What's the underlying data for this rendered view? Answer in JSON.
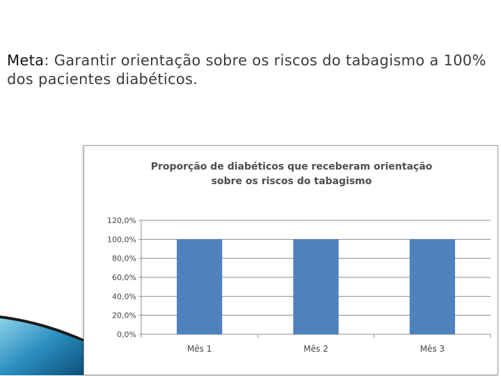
{
  "meta": {
    "label": "Meta",
    "text": ": Garantir orientação sobre os riscos do tabagismo a 100% dos pacientes diabéticos."
  },
  "colors": {
    "bar": "#4f81bd",
    "grid": "#8c8c8c",
    "text": "#444444"
  },
  "chart_data": {
    "type": "bar",
    "title_lines": [
      "Proporção de diabéticos que receberam orientação",
      "sobre os riscos do tabagismo"
    ],
    "categories": [
      "Mês 1",
      "Mês 2",
      "Mês 3"
    ],
    "values": [
      100.0,
      100.0,
      100.0
    ],
    "ylim": [
      0,
      120
    ],
    "yticks": [
      0,
      20,
      40,
      60,
      80,
      100,
      120
    ],
    "ytick_labels": [
      "0,0%",
      "20,0%",
      "40,0%",
      "60,0%",
      "80,0%",
      "100,0%",
      "120,0%"
    ],
    "grid": true,
    "legend": "none"
  }
}
